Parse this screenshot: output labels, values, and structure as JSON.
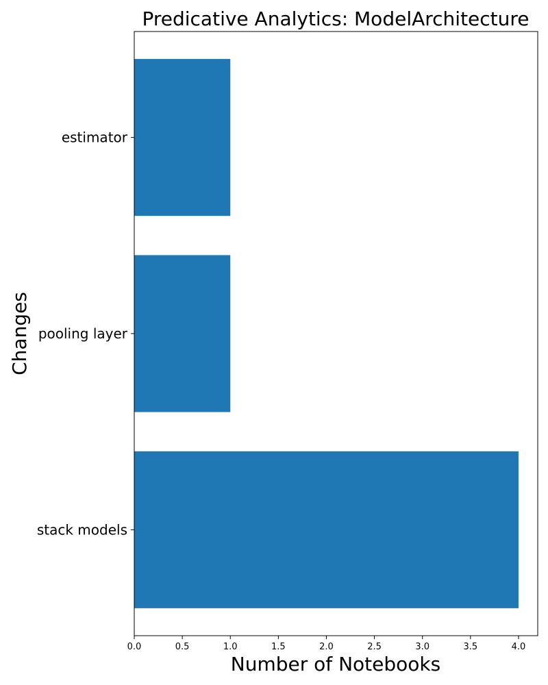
{
  "chart_data": {
    "type": "bar",
    "orientation": "horizontal",
    "title": "Predicative Analytics: ModelArchitecture",
    "xlabel": "Number of Notebooks",
    "ylabel": "Changes",
    "categories": [
      "stack models",
      "pooling layer",
      "estimator"
    ],
    "values": [
      4,
      1,
      1
    ],
    "xlim": [
      0,
      4.2
    ],
    "xticks": [
      "0.0",
      "0.5",
      "1.0",
      "1.5",
      "2.0",
      "2.5",
      "3.0",
      "3.5",
      "4.0"
    ],
    "bar_color": "#1f77b4",
    "grid": false,
    "legend": "none"
  }
}
